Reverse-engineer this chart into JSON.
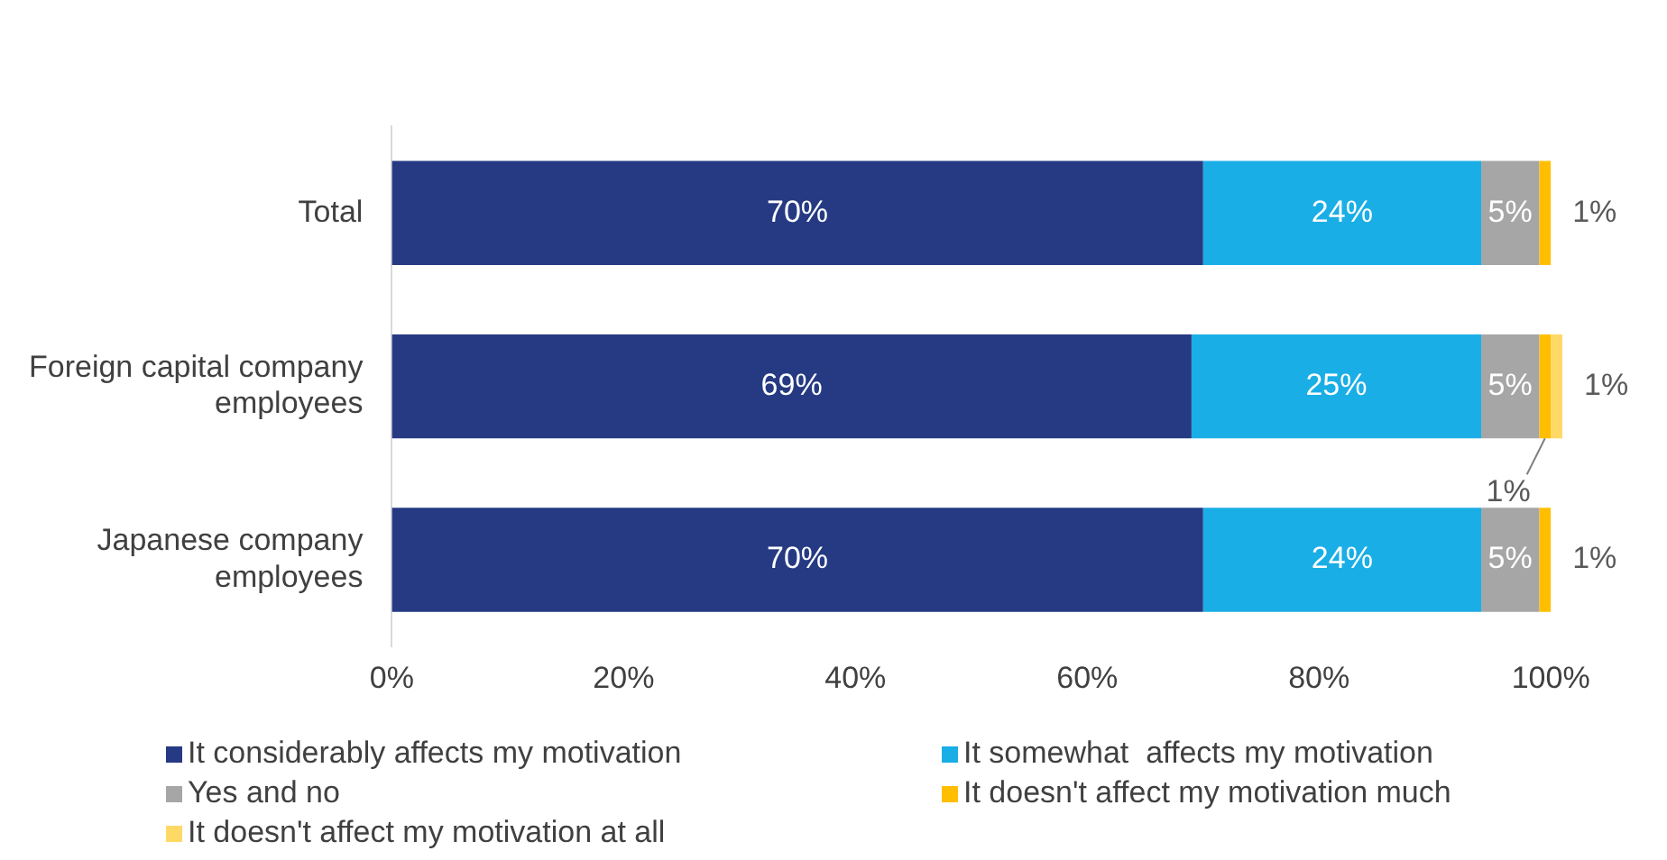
{
  "chart_data": {
    "type": "bar",
    "orientation": "horizontal",
    "stacked": true,
    "categories": [
      "Total",
      "Foreign capital company employees",
      "Japanese company employees"
    ],
    "series": [
      {
        "name": "It considerably affects my motivation",
        "color": "#253a82",
        "values": [
          70,
          69,
          70
        ],
        "value_labels": [
          "70%",
          "69%",
          "70%"
        ]
      },
      {
        "name": "It somewhat  affects my motivation",
        "color": "#1aaee6",
        "values": [
          24,
          25,
          24
        ],
        "value_labels": [
          "24%",
          "25%",
          "24%"
        ]
      },
      {
        "name": "Yes and no",
        "color": "#a6a6a6",
        "values": [
          5,
          5,
          5
        ],
        "value_labels": [
          "5%",
          "5%",
          "5%"
        ]
      },
      {
        "name": "It doesn't affect my motivation much",
        "color": "#ffbf00",
        "values": [
          1,
          1,
          1
        ],
        "value_labels": [
          "1%",
          "1%",
          "1%"
        ]
      },
      {
        "name": "It doesn't affect my motivation at all",
        "color": "#ffd966",
        "values": [
          null,
          1,
          null
        ],
        "value_labels": [
          null,
          "1%",
          null
        ]
      }
    ],
    "xlim": [
      0,
      101
    ],
    "xticks": [
      {
        "value": 0,
        "label": "0%"
      },
      {
        "value": 20,
        "label": "20%"
      },
      {
        "value": 40,
        "label": "40%"
      },
      {
        "value": 60,
        "label": "60%"
      },
      {
        "value": 80,
        "label": "80%"
      },
      {
        "value": 100,
        "label": "100%"
      }
    ],
    "grid": false,
    "legend": "bottom"
  }
}
